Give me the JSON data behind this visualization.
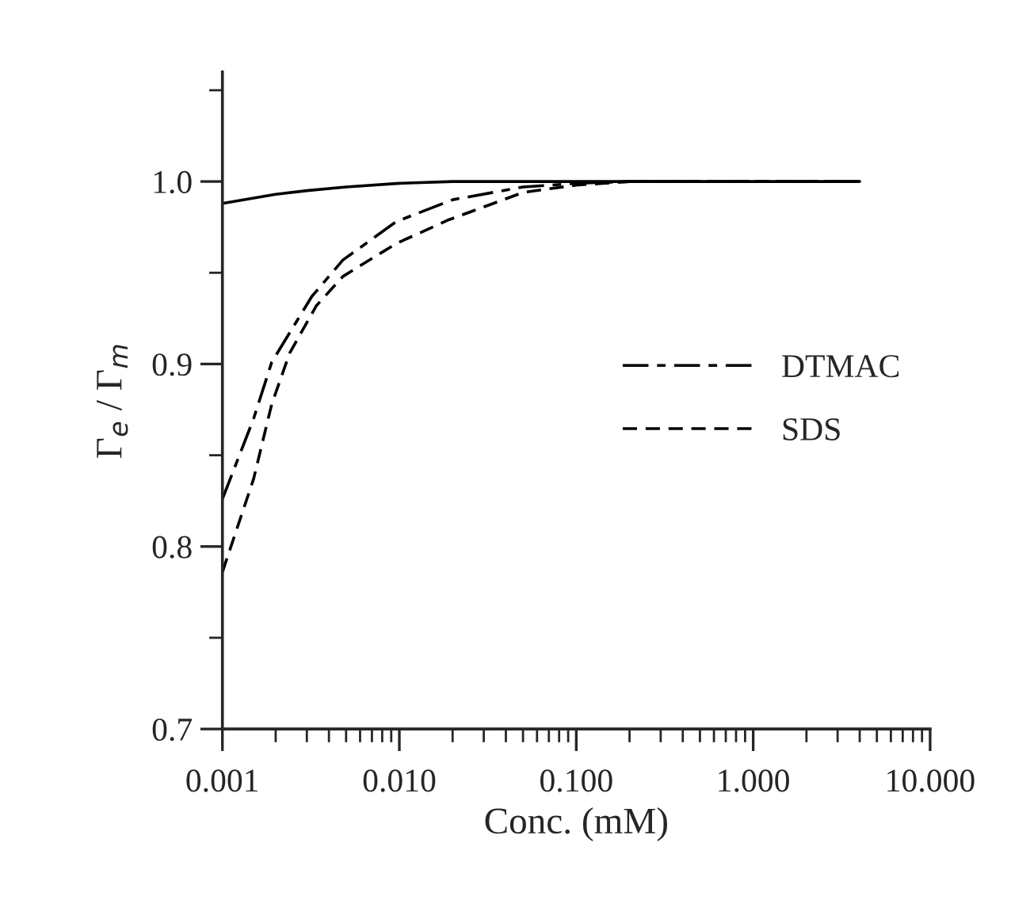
{
  "chart_data": {
    "type": "line",
    "xlabel": "Conc. (mM)",
    "ylabel": "Γ$_{e}$ / Γ$_{m}$",
    "log": "x",
    "grid": false,
    "legend": "right",
    "marker": "none",
    "xlim": [
      0.001,
      10
    ],
    "ylim": [
      0.7,
      1.06
    ],
    "xticks": [
      {
        "value": 0.001,
        "label": "0.001"
      },
      {
        "value": 0.01,
        "label": "0.010"
      },
      {
        "value": 0.1,
        "label": "0.100"
      },
      {
        "value": 1,
        "label": "1.000"
      },
      {
        "value": 10,
        "label": "10.000"
      }
    ],
    "yticks": [
      {
        "value": 0.7,
        "label": "0.7"
      },
      {
        "value": 0.8,
        "label": "0.8"
      },
      {
        "value": 0.9,
        "label": "0.9"
      },
      {
        "value": 1.0,
        "label": "1.0"
      }
    ],
    "series": [
      {
        "color": "#000000",
        "line_style": "solid",
        "x": [
          0.001,
          0.002,
          0.003,
          0.005,
          0.01,
          0.02,
          0.05,
          0.1,
          1,
          4
        ],
        "values": [
          0.988,
          0.993,
          0.995,
          0.997,
          0.999,
          1.0,
          1.0,
          1.0,
          1.0,
          1.0
        ]
      },
      {
        "name": "DTMAC",
        "color": "#000000",
        "line_style": "dashdot",
        "x": [
          0.001,
          0.0015,
          0.0019,
          0.0032,
          0.0048,
          0.0096,
          0.02,
          0.05,
          0.1,
          0.2,
          1,
          4
        ],
        "values": [
          0.826,
          0.87,
          0.901,
          0.937,
          0.957,
          0.978,
          0.99,
          0.997,
          0.999,
          1.0,
          1.0,
          1.0
        ]
      },
      {
        "name": "SDS",
        "color": "#000000",
        "line_style": "dashed",
        "x": [
          0.001,
          0.0015,
          0.0019,
          0.0024,
          0.0034,
          0.0048,
          0.0096,
          0.019,
          0.05,
          0.1,
          0.2,
          1,
          4
        ],
        "values": [
          0.786,
          0.837,
          0.878,
          0.906,
          0.932,
          0.948,
          0.966,
          0.979,
          0.994,
          0.998,
          1.0,
          1.0,
          1.0
        ]
      }
    ]
  }
}
